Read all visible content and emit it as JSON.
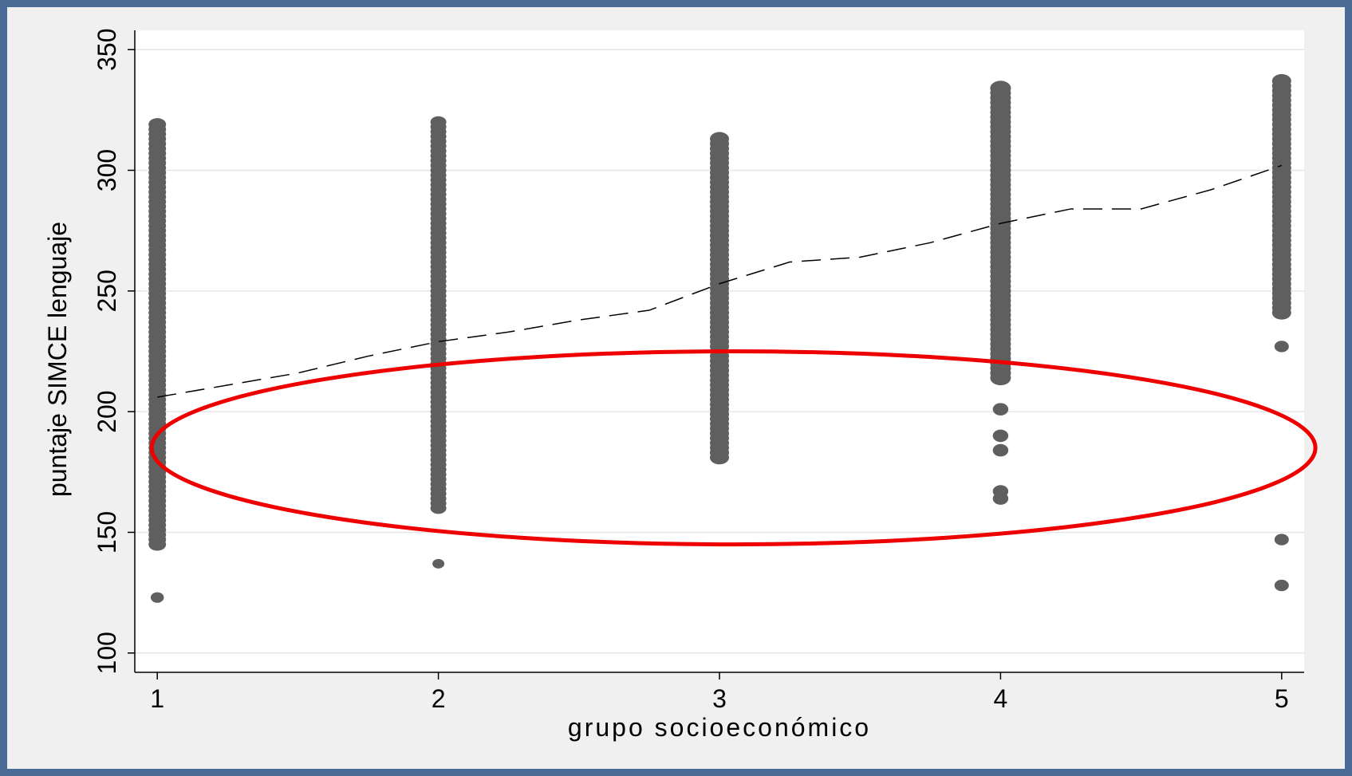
{
  "chart_data": {
    "type": "scatter",
    "title": "",
    "xlabel": "grupo socioeconómico",
    "ylabel": "puntaje SIMCE lenguaje",
    "x_ticks": [
      1,
      2,
      3,
      4,
      5
    ],
    "y_ticks": [
      100,
      150,
      200,
      250,
      300,
      350
    ],
    "xlim": [
      0.92,
      5.08
    ],
    "ylim": [
      92,
      358
    ],
    "grid": true,
    "legend": "none",
    "series": [
      {
        "kind": "points",
        "color": "#5f5f5f",
        "groups": [
          {
            "x": 1,
            "dense_range": [
              145,
              320
            ],
            "outliers": [
              123
            ]
          },
          {
            "x": 2,
            "dense_range": [
              160,
              320
            ],
            "outliers": [
              137
            ]
          },
          {
            "x": 3,
            "dense_range": [
              181,
              314
            ],
            "outliers": []
          },
          {
            "x": 4,
            "dense_range": [
              214,
              334
            ],
            "outliers": [
              201,
              190,
              184,
              167,
              164
            ]
          },
          {
            "x": 5,
            "dense_range": [
              241,
              338
            ],
            "outliers": [
              227,
              147,
              128
            ]
          }
        ]
      },
      {
        "kind": "fitted-line",
        "style": "dashed",
        "color": "#000000",
        "x": [
          1,
          1.25,
          1.5,
          1.75,
          2,
          2.25,
          2.5,
          2.75,
          3,
          3.25,
          3.5,
          3.75,
          4,
          4.25,
          4.5,
          4.75,
          5
        ],
        "y": [
          206,
          211,
          216,
          223,
          229,
          233,
          238,
          242,
          253,
          262,
          264,
          270,
          278,
          284,
          284,
          292,
          302
        ]
      }
    ],
    "annotations": [
      {
        "type": "ellipse",
        "color": "#ee0000",
        "cx": 3.05,
        "cy": 185,
        "rx_data": 2.07,
        "ry_data": 40
      }
    ]
  }
}
